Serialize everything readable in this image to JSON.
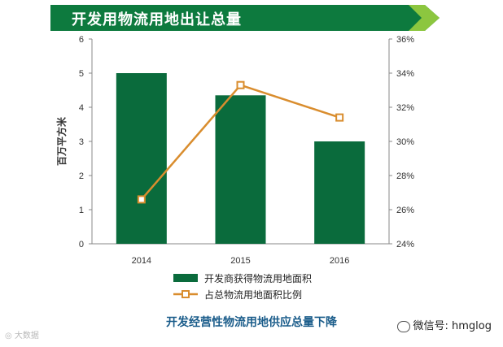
{
  "title": "开发用物流用地出让总量",
  "subtitle": "开发经营性物流用地供应总量下降",
  "watermarks": {
    "right_text": "微信号: hmglog",
    "right_icon": "wechat-icon",
    "left_text": "大数据",
    "left_icon": "weibo-icon"
  },
  "colors": {
    "bar": "#0a6b3c",
    "line": "#d98d2e",
    "banner": "#0d7a3e",
    "banner_accent": "#8cc63f"
  },
  "chart_data": {
    "type": "bar",
    "categories": [
      "2014",
      "2015",
      "2016"
    ],
    "series": [
      {
        "name": "开发商获得物流用地面积",
        "type": "bar",
        "axis": "left",
        "values": [
          5.0,
          4.35,
          3.0
        ]
      },
      {
        "name": "占总物流用地面积比例",
        "type": "line",
        "axis": "right",
        "values": [
          26.6,
          33.3,
          31.4
        ]
      }
    ],
    "ylabel": "百万平方米",
    "ylim": [
      0,
      6
    ],
    "yticks": [
      "0",
      "1",
      "2",
      "3",
      "4",
      "5",
      "6"
    ],
    "y2lim": [
      24,
      36
    ],
    "y2ticks": [
      "24%",
      "26%",
      "28%",
      "30%",
      "32%",
      "34%",
      "36%"
    ],
    "legend_position": "bottom",
    "grid": false
  }
}
